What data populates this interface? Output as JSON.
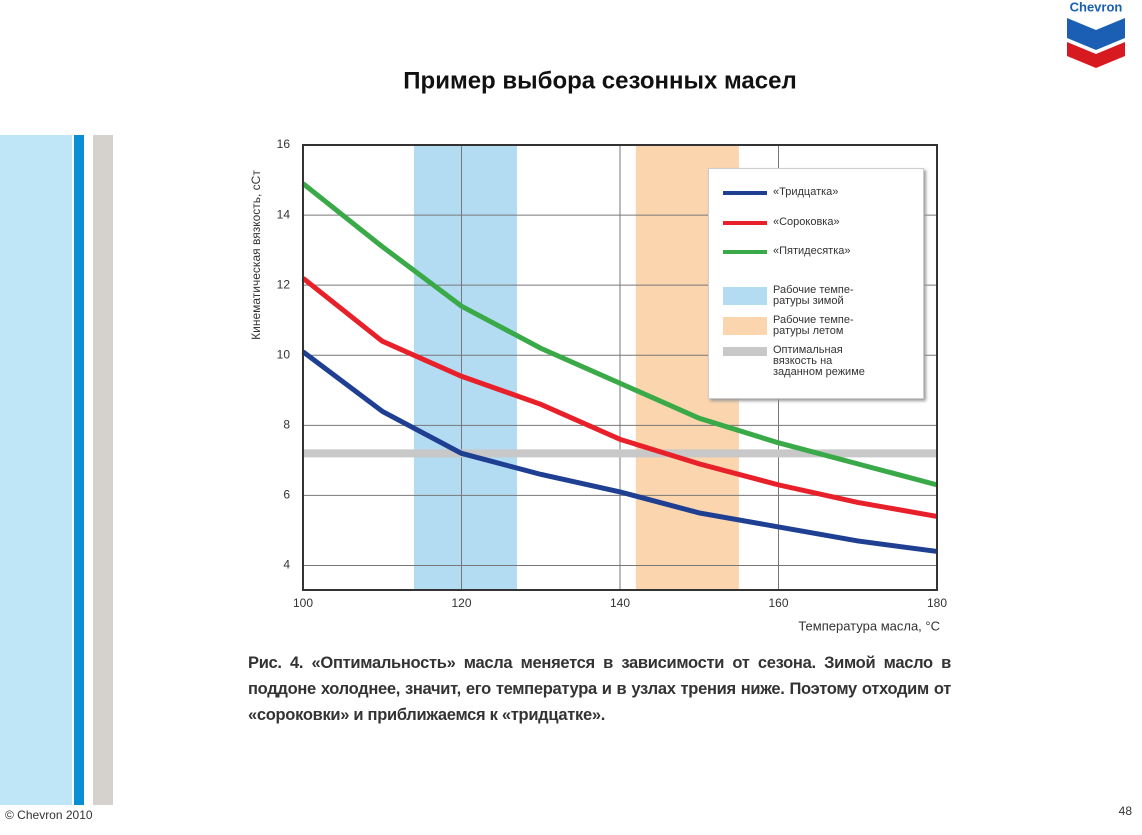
{
  "slide": {
    "logo": "Chevron",
    "title": "Пример выбора сезонных масел",
    "caption": "Рис. 4. «Оптимальность» масла меняется в зависимости от сезона. Зимой масло в поддоне холоднее, значит, его температура и в узлах трения ниже. Поэтому отходим от «сороковки» и приближаемся к «тридцатке».",
    "footer": "© Chevron 2010",
    "page_number": "48"
  },
  "chart_data": {
    "type": "line",
    "x_label": "Температура масла, °С",
    "y_label": "Кинематическая вязкость, сСт",
    "x": [
      100,
      110,
      120,
      130,
      140,
      150,
      160,
      170,
      180
    ],
    "series": [
      {
        "name": "«Тридцатка»",
        "color": "#1f3f93",
        "values": [
          10.1,
          8.4,
          7.2,
          6.6,
          6.1,
          5.5,
          5.1,
          4.7,
          4.4
        ]
      },
      {
        "name": "«Сороковка»",
        "color": "#e8202a",
        "values": [
          12.2,
          10.4,
          9.4,
          8.6,
          7.6,
          6.9,
          6.3,
          5.8,
          5.4
        ]
      },
      {
        "name": "«Пятидесятка»",
        "color": "#3aaa49",
        "values": [
          14.9,
          13.1,
          11.4,
          10.2,
          9.2,
          8.2,
          7.5,
          6.9,
          6.3
        ]
      }
    ],
    "bands": [
      {
        "name": "Рабочие темпе-\nратуры зимой",
        "color": "#b3dcf3",
        "x": [
          114,
          127
        ]
      },
      {
        "name": "Рабочие темпе-\nратуры летом",
        "color": "#fbd5ae",
        "x": [
          142,
          155
        ]
      }
    ],
    "reference_lines": [
      {
        "name": "Оптимальная\nвязкость на\nзаданном режиме",
        "color": "#c8c8c8",
        "y": 7.2
      }
    ],
    "xlim": [
      100,
      180
    ],
    "ylim": [
      3.3,
      16
    ],
    "xticks": [
      100,
      120,
      140,
      160,
      180
    ],
    "yticks": [
      4,
      6,
      8,
      10,
      12,
      14,
      16
    ],
    "grid": true
  }
}
